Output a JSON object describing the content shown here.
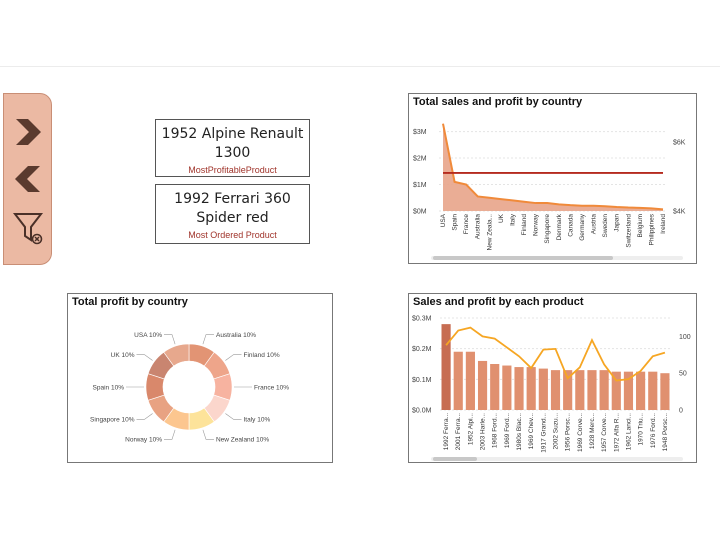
{
  "colors": {
    "nav_bg": "#ebb9a3",
    "nav_icon": "#5a3a2e",
    "kpi_label": "#a0342b",
    "area_fill": "#e8a489",
    "area_line": "#f08a3a",
    "profit_line": "#b52a1e",
    "bar": "#e0906f",
    "bar_first": "#c76d52",
    "line_orange": "#f6a623"
  },
  "nav": {
    "next_icon": "chevron-right-icon",
    "back_icon": "chevron-left-icon",
    "filter_icon": "clear-filter-icon"
  },
  "kpis": [
    {
      "value": "1952 Alpine Renault 1300",
      "label": "MostProfitableProduct"
    },
    {
      "value": "1992 Ferrari 360 Spider red",
      "label": "Most Ordered Product"
    }
  ],
  "charts": {
    "sales_by_country": {
      "title": "Total sales and profit by country"
    },
    "profit_by_country": {
      "title": "Total profit by country"
    },
    "sales_by_product": {
      "title": "Sales and profit by each product"
    }
  },
  "chart_data": [
    {
      "type": "area",
      "title": "Total sales and profit by country",
      "categories": [
        "USA",
        "Spain",
        "France",
        "Australia",
        "New Zeala...",
        "UK",
        "Italy",
        "Finland",
        "Norway",
        "Singapore",
        "Denmark",
        "Canada",
        "Germany",
        "Austria",
        "Sweden",
        "Japan",
        "Switzerland",
        "Belgium",
        "Philippines",
        "Ireland"
      ],
      "series": [
        {
          "values": [
            3.3,
            1.1,
            1.0,
            0.55,
            0.5,
            0.45,
            0.4,
            0.35,
            0.3,
            0.3,
            0.25,
            0.22,
            0.2,
            0.2,
            0.18,
            0.15,
            0.13,
            0.12,
            0.1,
            0.06
          ]
        },
        {
          "values": [
            5.1,
            5.1,
            5.1,
            5.1,
            5.1,
            5.1,
            5.1,
            5.1,
            5.1,
            5.1,
            5.1,
            5.1,
            5.1,
            5.1,
            5.1,
            5.1,
            5.1,
            5.1,
            5.1,
            5.1
          ]
        }
      ],
      "y_ticks": [
        "$0M",
        "$1M",
        "$2M",
        "$3M"
      ],
      "ylim": [
        0,
        3.4
      ],
      "y2_ticks": [
        "$4K",
        "$6K"
      ],
      "y2lim": [
        4,
        6.6
      ]
    },
    {
      "type": "pie",
      "title": "Total profit by country",
      "slices": [
        {
          "label": "Australia 10%",
          "value": 10,
          "color": "#e29474"
        },
        {
          "label": "Finland 10%",
          "value": 10,
          "color": "#eea58a"
        },
        {
          "label": "France 10%",
          "value": 10,
          "color": "#f7b3a0"
        },
        {
          "label": "Italy 10%",
          "value": 10,
          "color": "#fbd6cc"
        },
        {
          "label": "New Zealand 10%",
          "value": 10,
          "color": "#fde39a"
        },
        {
          "label": "Norway 10%",
          "value": 10,
          "color": "#fcc68f"
        },
        {
          "label": "Singapore 10%",
          "value": 10,
          "color": "#e8a282"
        },
        {
          "label": "Spain 10%",
          "value": 10,
          "color": "#d9886b"
        },
        {
          "label": "UK 10%",
          "value": 10,
          "color": "#c98570"
        },
        {
          "label": "USA 10%",
          "value": 10,
          "color": "#e7a88d"
        }
      ]
    },
    {
      "type": "bar",
      "title": "Sales and profit by each product",
      "categories": [
        "1992 Ferra...",
        "2001 Ferra...",
        "1952 Alpi...",
        "2003 Harle...",
        "1968 Ford...",
        "1969 Ford...",
        "1980s Blac...",
        "1969 Chev...",
        "1917 Grand...",
        "2002 Suzu...",
        "1956 Porsc...",
        "1969 Corve...",
        "1928 Merc...",
        "1957 Corve...",
        "1972 Alfa R...",
        "1962 Lanci...",
        "1970 Triu...",
        "1976 Ford...",
        "1948 Porsc..."
      ],
      "series": [
        {
          "values": [
            0.28,
            0.19,
            0.19,
            0.16,
            0.15,
            0.145,
            0.14,
            0.14,
            0.135,
            0.13,
            0.13,
            0.13,
            0.13,
            0.13,
            0.125,
            0.125,
            0.125,
            0.125,
            0.12
          ]
        },
        {
          "values": [
            88,
            108,
            112,
            100,
            97,
            85,
            73,
            57,
            82,
            83,
            43,
            58,
            95,
            62,
            40,
            42,
            53,
            73,
            78
          ]
        }
      ],
      "y_ticks": [
        "$0.0M",
        "$0.1M",
        "$0.2M",
        "$0.3M"
      ],
      "ylim": [
        0,
        0.3
      ],
      "y2_ticks": [
        "0",
        "50",
        "100"
      ],
      "y2lim": [
        0,
        125
      ]
    }
  ]
}
